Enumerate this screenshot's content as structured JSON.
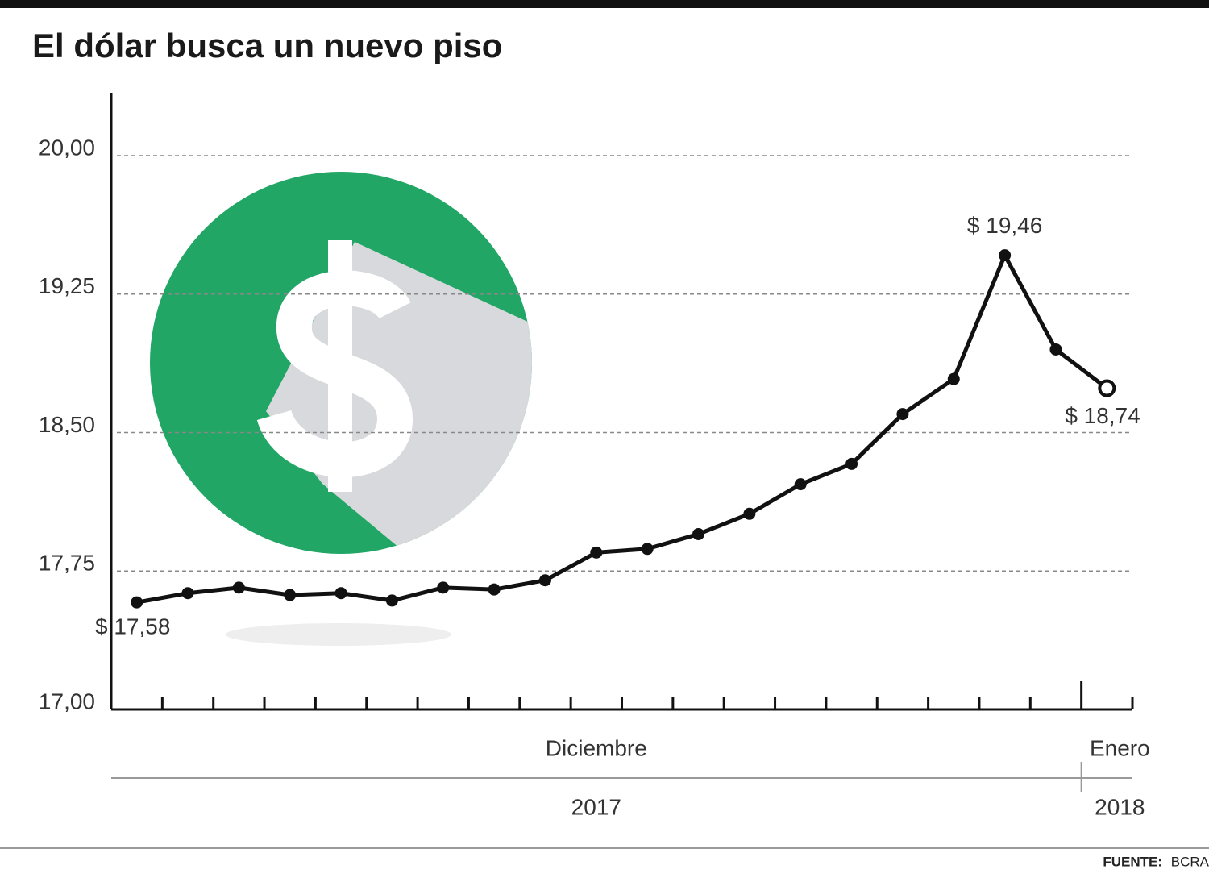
{
  "chart_data": {
    "type": "line",
    "title": "El dólar busca un nuevo piso",
    "categories": [
      null,
      null,
      null,
      null,
      null,
      null,
      null,
      null,
      null,
      null,
      null,
      null,
      null,
      null,
      null,
      null,
      null,
      null,
      null,
      null
    ],
    "series": [
      {
        "name": null,
        "color": "#111111",
        "values": [
          17.58,
          17.63,
          17.66,
          17.62,
          17.63,
          17.59,
          17.66,
          17.65,
          17.7,
          17.85,
          17.87,
          17.95,
          18.06,
          18.22,
          18.33,
          18.6,
          18.79,
          19.46,
          18.95,
          18.74
        ],
        "value_labels": [
          "$ 17,58",
          null,
          null,
          null,
          null,
          null,
          null,
          null,
          null,
          null,
          null,
          null,
          null,
          null,
          null,
          null,
          null,
          "$ 19,46",
          null,
          "$ 18,74"
        ]
      }
    ],
    "ylim": [
      17.0,
      20.35
    ],
    "yticks": [
      {
        "value": 17.0,
        "label": "17,00"
      },
      {
        "value": 17.75,
        "label": "17,75"
      },
      {
        "value": 18.5,
        "label": "18,50"
      },
      {
        "value": 19.25,
        "label": "19,25"
      },
      {
        "value": 20.0,
        "label": "20,00"
      }
    ],
    "grid": true,
    "months": [
      "Diciembre",
      "Enero"
    ],
    "years": [
      "2017",
      "2018"
    ],
    "source_label": "FUENTE:",
    "source": "BCRA"
  }
}
